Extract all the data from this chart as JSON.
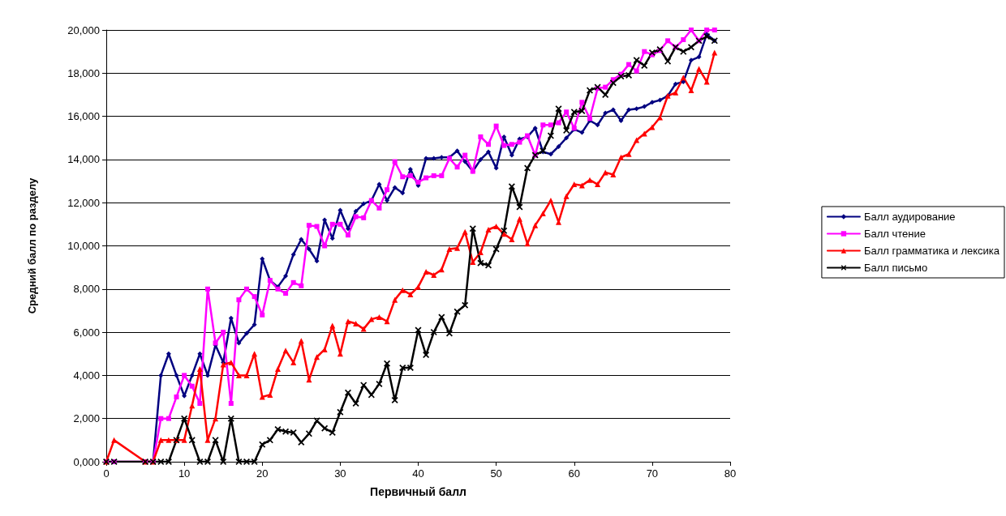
{
  "chart_data": {
    "type": "line",
    "xlabel": "Первичный балл",
    "ylabel": "Средний балл по разделу",
    "x": [
      0,
      1,
      5,
      6,
      7,
      8,
      9,
      10,
      11,
      12,
      13,
      14,
      15,
      16,
      17,
      18,
      19,
      20,
      21,
      22,
      23,
      24,
      25,
      26,
      27,
      28,
      29,
      30,
      31,
      32,
      33,
      34,
      35,
      36,
      37,
      38,
      39,
      40,
      41,
      42,
      43,
      44,
      45,
      46,
      47,
      48,
      49,
      50,
      51,
      52,
      53,
      54,
      55,
      56,
      57,
      58,
      59,
      60,
      61,
      62,
      63,
      64,
      65,
      66,
      67,
      68,
      69,
      70,
      71,
      72,
      73,
      74,
      75,
      76,
      77,
      78
    ],
    "xlim": [
      0,
      80
    ],
    "xticks": [
      0,
      10,
      20,
      30,
      40,
      50,
      60,
      70,
      80
    ],
    "ylim": [
      0,
      20000
    ],
    "yticks": [
      {
        "value": 0,
        "label": "0,000"
      },
      {
        "value": 2000,
        "label": "2,000"
      },
      {
        "value": 4000,
        "label": "4,000"
      },
      {
        "value": 6000,
        "label": "6,000"
      },
      {
        "value": 8000,
        "label": "8,000"
      },
      {
        "value": 10000,
        "label": "10,000"
      },
      {
        "value": 12000,
        "label": "12,000"
      },
      {
        "value": 14000,
        "label": "14,000"
      },
      {
        "value": 16000,
        "label": "16,000"
      },
      {
        "value": 18000,
        "label": "18,000"
      },
      {
        "value": 20000,
        "label": "20,000"
      }
    ],
    "grid": "y",
    "legend": "right",
    "line_style": "solid",
    "series": [
      {
        "name": "Балл аудирование",
        "color": "#000080",
        "marker": "diamond",
        "values": [
          null,
          null,
          0,
          0,
          4000,
          5000,
          4000,
          3050,
          4000,
          5000,
          4000,
          5400,
          4600,
          6650,
          5500,
          5950,
          6350,
          9400,
          8400,
          8100,
          8600,
          9600,
          10300,
          9850,
          9300,
          11200,
          10350,
          11650,
          10800,
          11600,
          11950,
          12100,
          12850,
          12100,
          12700,
          12450,
          13550,
          12800,
          14050,
          14050,
          14100,
          14100,
          14400,
          13900,
          13450,
          14000,
          14350,
          13600,
          15050,
          14200,
          14950,
          15050,
          15450,
          14350,
          14250,
          14600,
          15000,
          15400,
          15250,
          15800,
          15600,
          16150,
          16300,
          15800,
          16300,
          16350,
          16450,
          16650,
          16750,
          16950,
          17500,
          17600,
          18600,
          18750,
          19800,
          19500
        ]
      },
      {
        "name": "Балл чтение",
        "color": "#ff00ff",
        "marker": "square",
        "values": [
          0,
          0,
          0,
          0,
          2000,
          2000,
          3000,
          4000,
          3500,
          2700,
          8000,
          5500,
          6000,
          2700,
          7500,
          8000,
          7650,
          6800,
          8400,
          8000,
          7800,
          8300,
          8150,
          10950,
          10900,
          10000,
          11000,
          11000,
          10500,
          11350,
          11300,
          12100,
          11750,
          12600,
          13900,
          13200,
          13250,
          12950,
          13150,
          13250,
          13250,
          14050,
          13650,
          14200,
          13450,
          15050,
          14700,
          15550,
          14650,
          14700,
          14800,
          15100,
          14200,
          15600,
          15600,
          15700,
          16200,
          15450,
          16650,
          15900,
          17300,
          17350,
          17700,
          17950,
          18400,
          18100,
          19000,
          18850,
          19050,
          19500,
          19200,
          19550,
          20000,
          19500,
          20000,
          20000
        ]
      },
      {
        "name": "Балл грамматика и лексика",
        "color": "#ff0000",
        "marker": "triangle",
        "values": [
          0,
          1000,
          0,
          0,
          1000,
          1000,
          1000,
          1000,
          2600,
          4300,
          1000,
          2000,
          4500,
          4600,
          4000,
          4000,
          5000,
          3000,
          3100,
          4300,
          5150,
          4600,
          5600,
          3800,
          4850,
          5200,
          6300,
          5000,
          6500,
          6400,
          6150,
          6600,
          6700,
          6500,
          7500,
          7950,
          7750,
          8100,
          8800,
          8650,
          8900,
          9850,
          9900,
          10650,
          9250,
          9700,
          10750,
          10900,
          10550,
          10300,
          11250,
          10100,
          10950,
          11500,
          12100,
          11100,
          12300,
          12850,
          12800,
          13050,
          12850,
          13400,
          13300,
          14100,
          14250,
          14900,
          15200,
          15500,
          15950,
          16950,
          17100,
          17800,
          17200,
          18200,
          17600,
          18950
        ]
      },
      {
        "name": "Балл письмо",
        "color": "#000000",
        "marker": "cross",
        "values": [
          0,
          0,
          0,
          0,
          0,
          0,
          1000,
          2000,
          1000,
          0,
          0,
          1000,
          0,
          2000,
          0,
          0,
          0,
          800,
          1000,
          1500,
          1400,
          1350,
          900,
          1300,
          1900,
          1550,
          1350,
          2300,
          3200,
          2700,
          3550,
          3100,
          3600,
          4550,
          2850,
          4350,
          4350,
          6100,
          4950,
          6000,
          6700,
          5950,
          6950,
          7250,
          10800,
          9200,
          9100,
          9850,
          10700,
          12750,
          11800,
          13600,
          14200,
          14400,
          15100,
          16350,
          15350,
          16200,
          16250,
          17200,
          17350,
          17000,
          17550,
          17850,
          17900,
          18600,
          18350,
          18950,
          19100,
          18550,
          19200,
          19000,
          19200,
          19500,
          19700,
          19500
        ]
      }
    ]
  }
}
